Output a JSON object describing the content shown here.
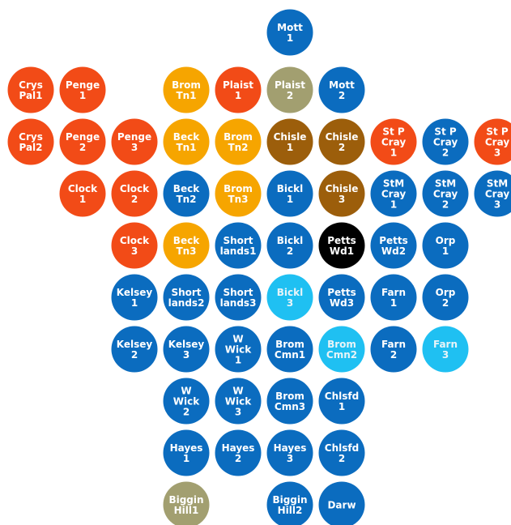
{
  "grid": {
    "rows": [
      [
        null,
        null,
        null,
        null,
        null,
        {
          "label": [
            "Mott",
            "1"
          ],
          "color": "#0b6cbf"
        }
      ],
      [
        {
          "label": [
            "Crys",
            "Pal1"
          ],
          "color": "#f24b17"
        },
        {
          "label": [
            "Penge",
            "1"
          ],
          "color": "#f24b17"
        },
        null,
        {
          "label": [
            "Brom",
            "Tn1"
          ],
          "color": "#f6a500"
        },
        {
          "label": [
            "Plaist",
            "1"
          ],
          "color": "#f24b17"
        },
        {
          "label": [
            "Plaist",
            "2"
          ],
          "color": "#a29f70"
        },
        {
          "label": [
            "Mott",
            "2"
          ],
          "color": "#0b6cbf"
        }
      ],
      [
        {
          "label": [
            "Crys",
            "Pal2"
          ],
          "color": "#f24b17"
        },
        {
          "label": [
            "Penge",
            "2"
          ],
          "color": "#f24b17"
        },
        {
          "label": [
            "Penge",
            "3"
          ],
          "color": "#f24b17"
        },
        {
          "label": [
            "Beck",
            "Tn1"
          ],
          "color": "#f6a500"
        },
        {
          "label": [
            "Brom",
            "Tn2"
          ],
          "color": "#f6a500"
        },
        {
          "label": [
            "Chisle",
            "1"
          ],
          "color": "#9c5e0b"
        },
        {
          "label": [
            "Chisle",
            "2"
          ],
          "color": "#9c5e0b"
        },
        {
          "label": [
            "St P",
            "Cray",
            "1"
          ],
          "color": "#f24b17"
        },
        {
          "label": [
            "St P",
            "Cray",
            "2"
          ],
          "color": "#0b6cbf"
        },
        {
          "label": [
            "St P",
            "Cray",
            "3"
          ],
          "color": "#f24b17"
        }
      ],
      [
        null,
        {
          "label": [
            "Clock",
            "1"
          ],
          "color": "#f24b17"
        },
        {
          "label": [
            "Clock",
            "2"
          ],
          "color": "#f24b17"
        },
        {
          "label": [
            "Beck",
            "Tn2"
          ],
          "color": "#0b6cbf"
        },
        {
          "label": [
            "Brom",
            "Tn3"
          ],
          "color": "#f6a500"
        },
        {
          "label": [
            "Bickl",
            "1"
          ],
          "color": "#0b6cbf"
        },
        {
          "label": [
            "Chisle",
            "3"
          ],
          "color": "#9c5e0b"
        },
        {
          "label": [
            "StM",
            "Cray",
            "1"
          ],
          "color": "#0b6cbf"
        },
        {
          "label": [
            "StM",
            "Cray",
            "2"
          ],
          "color": "#0b6cbf"
        },
        {
          "label": [
            "StM",
            "Cray",
            "3"
          ],
          "color": "#0b6cbf"
        }
      ],
      [
        null,
        null,
        {
          "label": [
            "Clock",
            "3"
          ],
          "color": "#f24b17"
        },
        {
          "label": [
            "Beck",
            "Tn3"
          ],
          "color": "#f6a500"
        },
        {
          "label": [
            "Short",
            "lands1"
          ],
          "color": "#0b6cbf"
        },
        {
          "label": [
            "Bickl",
            "2"
          ],
          "color": "#0b6cbf"
        },
        {
          "label": [
            "Petts",
            "Wd1"
          ],
          "color": "#000000"
        },
        {
          "label": [
            "Petts",
            "Wd2"
          ],
          "color": "#0b6cbf"
        },
        {
          "label": [
            "Orp",
            "1"
          ],
          "color": "#0b6cbf"
        }
      ],
      [
        null,
        null,
        {
          "label": [
            "Kelsey",
            "1"
          ],
          "color": "#0b6cbf"
        },
        {
          "label": [
            "Short",
            "lands2"
          ],
          "color": "#0b6cbf"
        },
        {
          "label": [
            "Short",
            "lands3"
          ],
          "color": "#0b6cbf"
        },
        {
          "label": [
            "Bickl",
            "3"
          ],
          "color": "#1fc0f2"
        },
        {
          "label": [
            "Petts",
            "Wd3"
          ],
          "color": "#0b6cbf"
        },
        {
          "label": [
            "Farn",
            "1"
          ],
          "color": "#0b6cbf"
        },
        {
          "label": [
            "Orp",
            "2"
          ],
          "color": "#0b6cbf"
        }
      ],
      [
        null,
        null,
        {
          "label": [
            "Kelsey",
            "2"
          ],
          "color": "#0b6cbf"
        },
        {
          "label": [
            "Kelsey",
            "3"
          ],
          "color": "#0b6cbf"
        },
        {
          "label": [
            "W",
            "Wick",
            "1"
          ],
          "color": "#0b6cbf"
        },
        {
          "label": [
            "Brom",
            "Cmn1"
          ],
          "color": "#0b6cbf"
        },
        {
          "label": [
            "Brom",
            "Cmn2"
          ],
          "color": "#1fc0f2"
        },
        {
          "label": [
            "Farn",
            "2"
          ],
          "color": "#0b6cbf"
        },
        {
          "label": [
            "Farn",
            "3"
          ],
          "color": "#1fc0f2"
        }
      ],
      [
        null,
        null,
        null,
        {
          "label": [
            "W",
            "Wick",
            "2"
          ],
          "color": "#0b6cbf"
        },
        {
          "label": [
            "W",
            "Wick",
            "3"
          ],
          "color": "#0b6cbf"
        },
        {
          "label": [
            "Brom",
            "Cmn3"
          ],
          "color": "#0b6cbf"
        },
        {
          "label": [
            "Chlsfd",
            "1"
          ],
          "color": "#0b6cbf"
        }
      ],
      [
        null,
        null,
        null,
        {
          "label": [
            "Hayes",
            "1"
          ],
          "color": "#0b6cbf"
        },
        {
          "label": [
            "Hayes",
            "2"
          ],
          "color": "#0b6cbf"
        },
        {
          "label": [
            "Hayes",
            "3"
          ],
          "color": "#0b6cbf"
        },
        {
          "label": [
            "Chlsfd",
            "2"
          ],
          "color": "#0b6cbf"
        }
      ],
      [
        null,
        null,
        null,
        {
          "label": [
            "Biggin",
            "Hill1"
          ],
          "color": "#a29f70"
        },
        null,
        {
          "label": [
            "Biggin",
            "Hill2"
          ],
          "color": "#0b6cbf"
        },
        {
          "label": [
            "Darw"
          ],
          "color": "#0b6cbf"
        }
      ]
    ]
  }
}
